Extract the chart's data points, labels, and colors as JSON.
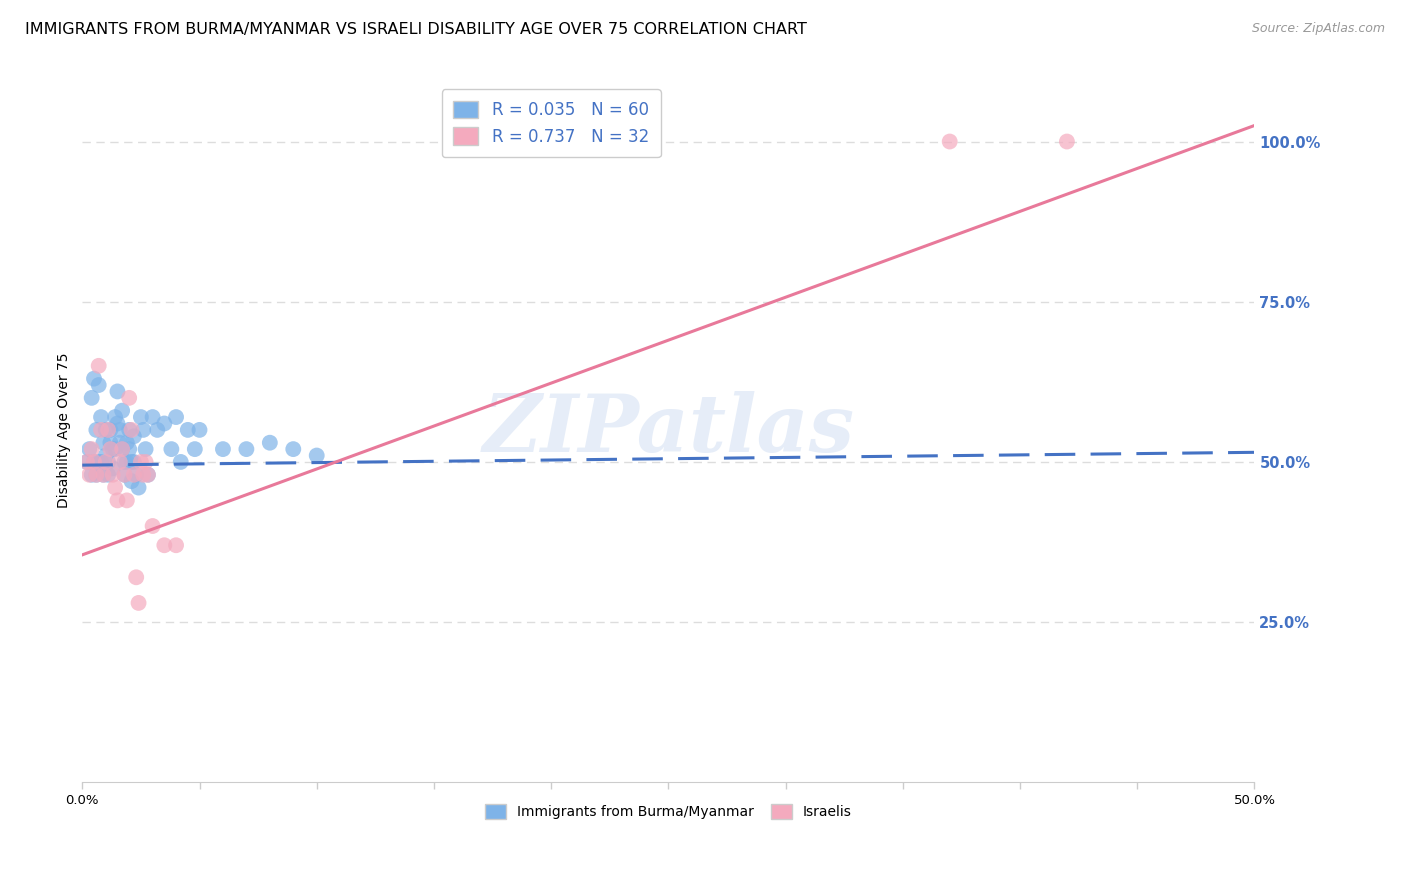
{
  "title": "IMMIGRANTS FROM BURMA/MYANMAR VS ISRAELI DISABILITY AGE OVER 75 CORRELATION CHART",
  "source": "Source: ZipAtlas.com",
  "ylabel_left": "Disability Age Over 75",
  "xlabel_legend_blue": "Immigrants from Burma/Myanmar",
  "xlabel_legend_pink": "Israelis",
  "legend_blue_R": "0.035",
  "legend_blue_N": "60",
  "legend_pink_R": "0.737",
  "legend_pink_N": "32",
  "xmin": 0.0,
  "xmax": 0.5,
  "ymin": 0.0,
  "ymax": 1.1,
  "yticks_right": [
    0.25,
    0.5,
    0.75,
    1.0
  ],
  "ytick_labels_right": [
    "25.0%",
    "50.0%",
    "75.0%",
    "100.0%"
  ],
  "xticks": [
    0.0,
    0.05,
    0.1,
    0.15,
    0.2,
    0.25,
    0.3,
    0.35,
    0.4,
    0.45,
    0.5
  ],
  "xtick_labels_show": [
    "0.0%",
    "",
    "",
    "",
    "",
    "",
    "",
    "",
    "",
    "",
    "50.0%"
  ],
  "color_blue": "#7EB3E8",
  "color_pink": "#F4AABE",
  "color_blue_line": "#4472C4",
  "color_pink_line": "#E8799A",
  "color_right_axis": "#4472C4",
  "color_grid": "#DDDDDD",
  "blue_points_x": [
    0.002,
    0.003,
    0.004,
    0.004,
    0.005,
    0.005,
    0.006,
    0.006,
    0.007,
    0.007,
    0.008,
    0.008,
    0.009,
    0.009,
    0.01,
    0.01,
    0.011,
    0.011,
    0.012,
    0.012,
    0.013,
    0.013,
    0.014,
    0.014,
    0.015,
    0.015,
    0.016,
    0.016,
    0.017,
    0.017,
    0.018,
    0.018,
    0.019,
    0.019,
    0.02,
    0.02,
    0.021,
    0.021,
    0.022,
    0.022,
    0.023,
    0.024,
    0.025,
    0.026,
    0.027,
    0.028,
    0.03,
    0.032,
    0.035,
    0.038,
    0.04,
    0.042,
    0.045,
    0.048,
    0.05,
    0.06,
    0.07,
    0.08,
    0.09,
    0.1
  ],
  "blue_points_y": [
    0.5,
    0.52,
    0.6,
    0.48,
    0.5,
    0.63,
    0.55,
    0.48,
    0.62,
    0.5,
    0.57,
    0.5,
    0.53,
    0.48,
    0.55,
    0.51,
    0.5,
    0.48,
    0.55,
    0.53,
    0.52,
    0.49,
    0.57,
    0.52,
    0.61,
    0.56,
    0.55,
    0.53,
    0.58,
    0.52,
    0.5,
    0.48,
    0.53,
    0.5,
    0.55,
    0.52,
    0.5,
    0.47,
    0.54,
    0.5,
    0.48,
    0.46,
    0.57,
    0.55,
    0.52,
    0.48,
    0.57,
    0.55,
    0.56,
    0.52,
    0.57,
    0.5,
    0.55,
    0.52,
    0.55,
    0.52,
    0.52,
    0.53,
    0.52,
    0.51
  ],
  "pink_points_x": [
    0.002,
    0.003,
    0.004,
    0.005,
    0.006,
    0.007,
    0.008,
    0.009,
    0.01,
    0.011,
    0.012,
    0.013,
    0.014,
    0.015,
    0.016,
    0.017,
    0.018,
    0.019,
    0.02,
    0.021,
    0.022,
    0.023,
    0.024,
    0.025,
    0.026,
    0.027,
    0.028,
    0.03,
    0.035,
    0.04,
    0.37,
    0.42
  ],
  "pink_points_y": [
    0.5,
    0.48,
    0.52,
    0.5,
    0.48,
    0.65,
    0.55,
    0.48,
    0.5,
    0.55,
    0.52,
    0.48,
    0.46,
    0.44,
    0.5,
    0.52,
    0.48,
    0.44,
    0.6,
    0.55,
    0.48,
    0.32,
    0.28,
    0.5,
    0.48,
    0.5,
    0.48,
    0.4,
    0.37,
    0.37,
    1.0,
    1.0
  ],
  "blue_line_x": [
    0.0,
    0.5
  ],
  "blue_line_y": [
    0.495,
    0.515
  ],
  "pink_line_x": [
    0.0,
    0.5
  ],
  "pink_line_y": [
    0.355,
    1.025
  ],
  "watermark": "ZIPatlas",
  "title_fontsize": 11.5,
  "source_fontsize": 9,
  "axis_label_fontsize": 10,
  "tick_fontsize": 9.5,
  "legend_fontsize": 12
}
